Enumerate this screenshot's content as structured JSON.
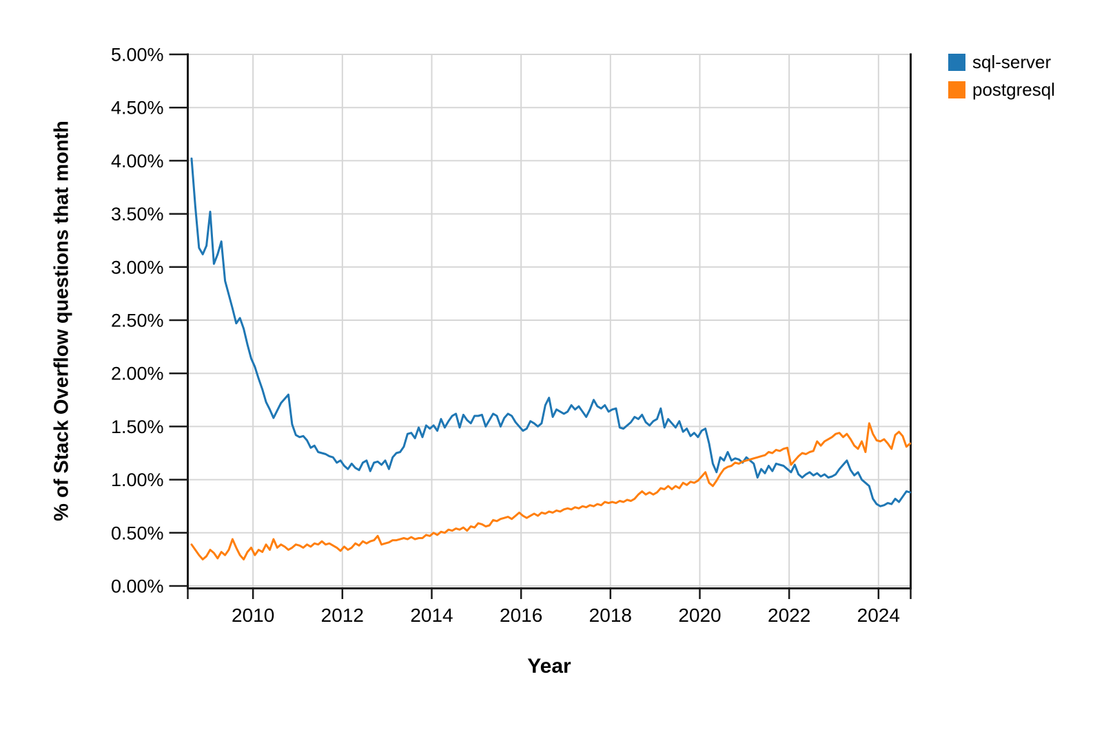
{
  "chart_data": {
    "type": "line",
    "title": "",
    "xlabel": "Year",
    "ylabel": "% of Stack Overflow questions that month",
    "x_start": "2008-08",
    "x_interval": "monthly",
    "xlim": [
      2008.54,
      2024.72
    ],
    "ylim": [
      0,
      5
    ],
    "grid": true,
    "legend_position": "top-right-outside",
    "x_ticks": [
      2010,
      2012,
      2014,
      2016,
      2018,
      2020,
      2022,
      2024
    ],
    "x_tick_labels": [
      "2010",
      "2012",
      "2014",
      "2016",
      "2018",
      "2020",
      "2022",
      "2024"
    ],
    "y_ticks": [
      0,
      0.5,
      1,
      1.5,
      2,
      2.5,
      3,
      3.5,
      4,
      4.5,
      5
    ],
    "y_tick_labels": [
      "0.00%",
      "0.50%",
      "1.00%",
      "1.50%",
      "2.00%",
      "2.50%",
      "3.00%",
      "3.50%",
      "4.00%",
      "4.50%",
      "5.00%"
    ],
    "series": [
      {
        "name": "sql-server",
        "color": "#1f77b4",
        "values": [
          4.02,
          3.57,
          3.18,
          3.12,
          3.2,
          3.52,
          3.03,
          3.12,
          3.24,
          2.87,
          2.74,
          2.61,
          2.47,
          2.52,
          2.42,
          2.27,
          2.14,
          2.06,
          1.95,
          1.85,
          1.73,
          1.66,
          1.58,
          1.65,
          1.72,
          1.76,
          1.8,
          1.52,
          1.42,
          1.4,
          1.41,
          1.37,
          1.3,
          1.32,
          1.26,
          1.25,
          1.24,
          1.22,
          1.21,
          1.16,
          1.18,
          1.13,
          1.1,
          1.15,
          1.11,
          1.09,
          1.16,
          1.18,
          1.08,
          1.16,
          1.17,
          1.14,
          1.18,
          1.1,
          1.21,
          1.25,
          1.26,
          1.31,
          1.43,
          1.44,
          1.39,
          1.49,
          1.4,
          1.51,
          1.48,
          1.51,
          1.46,
          1.57,
          1.49,
          1.55,
          1.6,
          1.62,
          1.49,
          1.61,
          1.56,
          1.53,
          1.6,
          1.6,
          1.61,
          1.5,
          1.56,
          1.62,
          1.6,
          1.5,
          1.58,
          1.62,
          1.6,
          1.54,
          1.5,
          1.46,
          1.48,
          1.55,
          1.53,
          1.5,
          1.53,
          1.7,
          1.77,
          1.59,
          1.66,
          1.64,
          1.62,
          1.64,
          1.7,
          1.66,
          1.69,
          1.64,
          1.59,
          1.66,
          1.75,
          1.69,
          1.67,
          1.7,
          1.64,
          1.66,
          1.67,
          1.49,
          1.48,
          1.51,
          1.54,
          1.59,
          1.57,
          1.61,
          1.54,
          1.51,
          1.55,
          1.57,
          1.67,
          1.49,
          1.57,
          1.53,
          1.49,
          1.55,
          1.45,
          1.48,
          1.41,
          1.44,
          1.4,
          1.46,
          1.48,
          1.34,
          1.15,
          1.07,
          1.21,
          1.18,
          1.26,
          1.18,
          1.2,
          1.19,
          1.16,
          1.21,
          1.18,
          1.15,
          1.02,
          1.1,
          1.06,
          1.13,
          1.08,
          1.15,
          1.14,
          1.13,
          1.1,
          1.07,
          1.14,
          1.05,
          1.02,
          1.05,
          1.07,
          1.04,
          1.06,
          1.03,
          1.05,
          1.02,
          1.03,
          1.05,
          1.1,
          1.14,
          1.18,
          1.09,
          1.04,
          1.07,
          1.0,
          0.97,
          0.94,
          0.82,
          0.77,
          0.75,
          0.76,
          0.78,
          0.77,
          0.82,
          0.79,
          0.84,
          0.89,
          0.88
        ]
      },
      {
        "name": "postgresql",
        "color": "#ff7f0e",
        "values": [
          0.39,
          0.34,
          0.29,
          0.25,
          0.28,
          0.34,
          0.31,
          0.26,
          0.32,
          0.29,
          0.34,
          0.44,
          0.36,
          0.29,
          0.25,
          0.32,
          0.36,
          0.29,
          0.34,
          0.32,
          0.39,
          0.34,
          0.44,
          0.36,
          0.39,
          0.37,
          0.34,
          0.36,
          0.39,
          0.38,
          0.36,
          0.39,
          0.37,
          0.4,
          0.39,
          0.42,
          0.39,
          0.4,
          0.38,
          0.36,
          0.33,
          0.37,
          0.34,
          0.36,
          0.4,
          0.38,
          0.42,
          0.4,
          0.42,
          0.43,
          0.47,
          0.39,
          0.4,
          0.41,
          0.43,
          0.43,
          0.44,
          0.45,
          0.44,
          0.46,
          0.44,
          0.45,
          0.45,
          0.48,
          0.47,
          0.5,
          0.48,
          0.51,
          0.5,
          0.53,
          0.52,
          0.54,
          0.53,
          0.55,
          0.52,
          0.56,
          0.55,
          0.59,
          0.58,
          0.56,
          0.57,
          0.62,
          0.61,
          0.63,
          0.64,
          0.65,
          0.63,
          0.66,
          0.69,
          0.66,
          0.64,
          0.66,
          0.68,
          0.66,
          0.69,
          0.68,
          0.7,
          0.69,
          0.71,
          0.7,
          0.72,
          0.73,
          0.72,
          0.74,
          0.73,
          0.75,
          0.74,
          0.76,
          0.75,
          0.77,
          0.76,
          0.79,
          0.78,
          0.79,
          0.78,
          0.8,
          0.79,
          0.81,
          0.8,
          0.82,
          0.86,
          0.89,
          0.86,
          0.88,
          0.86,
          0.88,
          0.92,
          0.91,
          0.94,
          0.91,
          0.94,
          0.92,
          0.97,
          0.95,
          0.98,
          0.97,
          0.99,
          1.03,
          1.07,
          0.97,
          0.94,
          0.99,
          1.05,
          1.1,
          1.12,
          1.13,
          1.16,
          1.15,
          1.17,
          1.18,
          1.19,
          1.2,
          1.21,
          1.22,
          1.23,
          1.26,
          1.25,
          1.28,
          1.27,
          1.29,
          1.3,
          1.14,
          1.18,
          1.22,
          1.25,
          1.24,
          1.26,
          1.27,
          1.36,
          1.32,
          1.36,
          1.38,
          1.4,
          1.43,
          1.44,
          1.4,
          1.43,
          1.38,
          1.32,
          1.29,
          1.36,
          1.26,
          1.53,
          1.43,
          1.37,
          1.36,
          1.38,
          1.34,
          1.29,
          1.42,
          1.45,
          1.41,
          1.31,
          1.34
        ]
      }
    ]
  },
  "axes": {
    "x_title": "Year",
    "y_title": "% of Stack Overflow questions that month"
  },
  "legend": {
    "items": [
      {
        "label": "sql-server",
        "color": "#1f77b4"
      },
      {
        "label": "postgresql",
        "color": "#ff7f0e"
      }
    ]
  },
  "style": {
    "grid_color": "#d6d6d6",
    "spine_color": "#1a1a1a",
    "tick_color": "#1a1a1a",
    "label_color": "#000000",
    "background": "#ffffff"
  }
}
